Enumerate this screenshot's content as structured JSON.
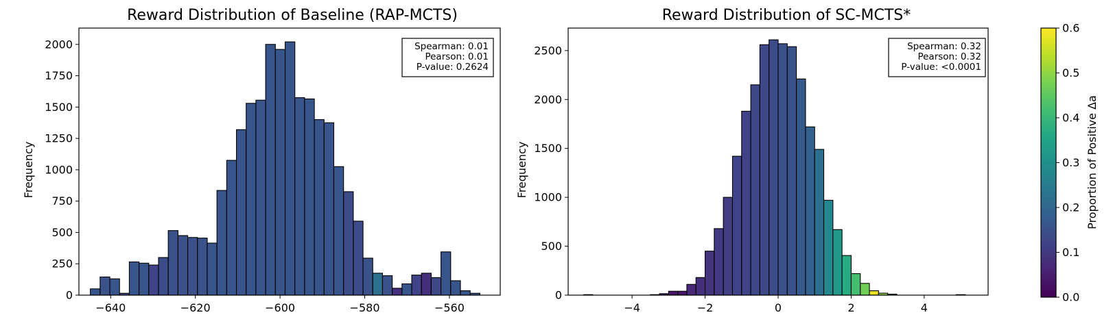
{
  "colorbar": {
    "label": "Proportion of Positive Δa",
    "range": [
      0.0,
      0.6
    ],
    "ticks": [
      "0.0",
      "0.1",
      "0.2",
      "0.3",
      "0.4",
      "0.5",
      "0.6"
    ],
    "colormap": "viridis"
  },
  "chart_data": [
    {
      "type": "bar",
      "subtype": "histogram",
      "title": "Reward Distribution of Baseline (RAP-MCTS)",
      "xlabel": "",
      "ylabel": "Frequency",
      "xlim": [
        -647.5,
        -548
      ],
      "ylim": [
        0,
        2130
      ],
      "xticks": [
        -640,
        -620,
        -600,
        -580,
        -560
      ],
      "yticks": [
        0,
        250,
        500,
        750,
        1000,
        1250,
        1500,
        1750,
        2000
      ],
      "bin_start": -644.8,
      "bin_width": 2.3,
      "values": [
        50,
        145,
        130,
        15,
        265,
        255,
        240,
        300,
        515,
        475,
        460,
        455,
        415,
        835,
        1075,
        1320,
        1530,
        1555,
        2000,
        1960,
        2020,
        1575,
        1565,
        1400,
        1375,
        1025,
        825,
        590,
        295,
        175,
        155,
        55,
        90,
        160,
        175,
        140,
        345,
        115,
        35,
        15
      ],
      "proportion_positive": [
        0.16,
        0.15,
        0.16,
        0.13,
        0.16,
        0.16,
        0.12,
        0.14,
        0.15,
        0.15,
        0.15,
        0.15,
        0.16,
        0.16,
        0.16,
        0.16,
        0.16,
        0.16,
        0.16,
        0.16,
        0.16,
        0.16,
        0.16,
        0.16,
        0.16,
        0.16,
        0.14,
        0.14,
        0.15,
        0.22,
        0.15,
        0.08,
        0.16,
        0.12,
        0.08,
        0.13,
        0.16,
        0.16,
        0.16,
        0.16
      ],
      "stats": [
        "Spearman: 0.01",
        "Pearson: 0.01",
        "P-value: 0.2624"
      ],
      "stats_position": "top-right",
      "grid": false
    },
    {
      "type": "bar",
      "subtype": "histogram",
      "title": "Reward Distribution of SC-MCTS*",
      "xlabel": "",
      "ylabel": "Frequency",
      "xlim": [
        -5.75,
        5.75
      ],
      "ylim": [
        0,
        2730
      ],
      "xticks": [
        -4,
        -2,
        0,
        2,
        4
      ],
      "yticks": [
        0,
        500,
        1000,
        1500,
        2000,
        2500
      ],
      "bin_start": -3.5,
      "bin_width": 0.25,
      "values": [
        5,
        15,
        40,
        40,
        110,
        180,
        450,
        680,
        1000,
        1420,
        1880,
        2150,
        2560,
        2610,
        2570,
        2540,
        2210,
        1720,
        1490,
        970,
        670,
        405,
        220,
        120,
        45,
        20,
        10
      ],
      "proportion_positive": [
        0.04,
        0.04,
        0.04,
        0.04,
        0.07,
        0.08,
        0.09,
        0.1,
        0.11,
        0.12,
        0.12,
        0.13,
        0.13,
        0.14,
        0.15,
        0.15,
        0.17,
        0.19,
        0.22,
        0.28,
        0.32,
        0.37,
        0.42,
        0.47,
        0.58,
        0.5,
        0.35
      ],
      "outliers": [
        {
          "x": -5.2,
          "value": 5
        },
        {
          "x": 5.0,
          "value": 5
        }
      ],
      "stats": [
        "Spearman: 0.32",
        "Pearson: 0.32",
        "P-value: <0.0001"
      ],
      "stats_position": "top-right",
      "grid": false
    }
  ]
}
